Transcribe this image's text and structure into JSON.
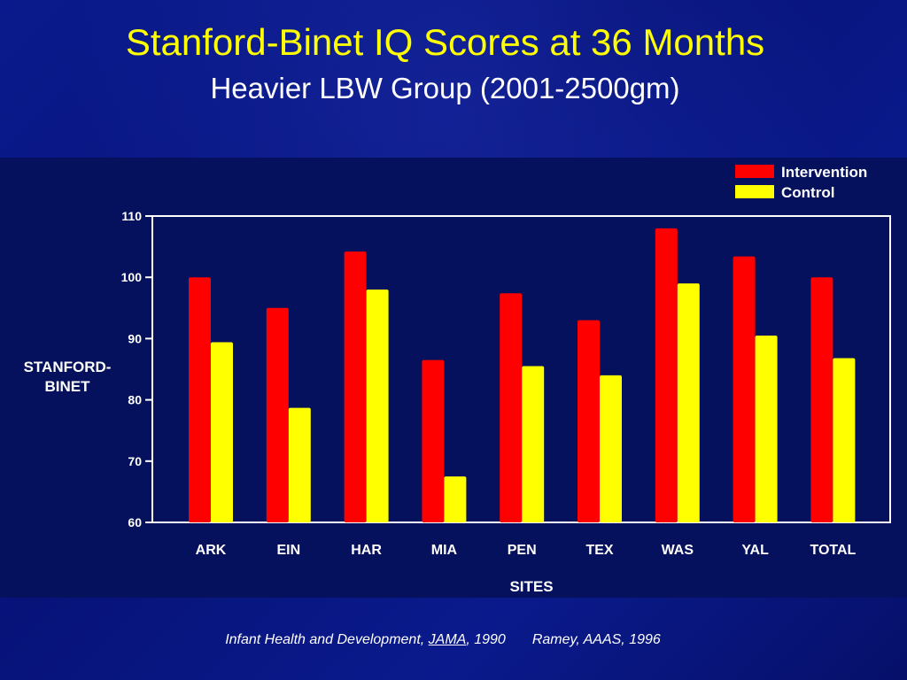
{
  "title": "Stanford-Binet IQ Scores at 36 Months",
  "subtitle": "Heavier LBW Group (2001-2500gm)",
  "colors": {
    "intervention": "#ff0000",
    "control": "#ffff00",
    "axis": "#ffffff",
    "background": "#05115c"
  },
  "chart_data": {
    "type": "bar",
    "categories": [
      "ARK",
      "EIN",
      "HAR",
      "MIA",
      "PEN",
      "TEX",
      "WAS",
      "YAL",
      "TOTAL"
    ],
    "series": [
      {
        "name": "Intervention",
        "values": [
          100,
          95,
          104.2,
          86.5,
          97.4,
          93,
          108,
          103.4,
          100
        ]
      },
      {
        "name": "Control",
        "values": [
          89.4,
          78.7,
          98,
          67.5,
          85.5,
          84,
          99,
          90.5,
          86.8
        ]
      }
    ],
    "ylabel_lines": [
      "STANFORD-",
      "BINET"
    ],
    "xlabel": "SITES",
    "ylim": [
      60,
      110
    ],
    "yticks": [
      110,
      100,
      90,
      80,
      70,
      60
    ],
    "grid": false,
    "legend_position": "top-right"
  },
  "footer": {
    "citation_prefix": "Infant Health and Development, ",
    "citation_journal": "JAMA",
    "citation_suffix": ", 1990",
    "second_citation": "Ramey, AAAS, 1996"
  }
}
